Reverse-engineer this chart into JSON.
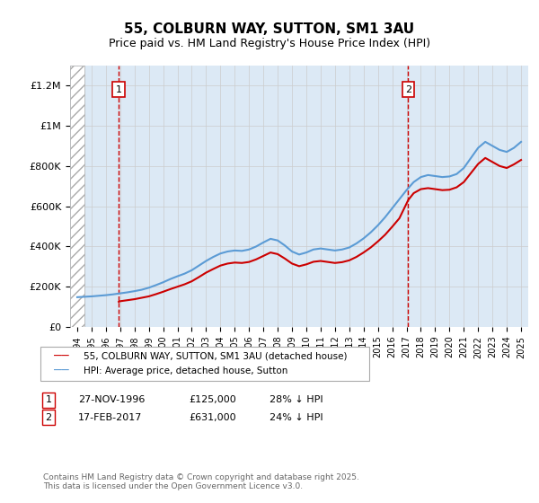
{
  "title": "55, COLBURN WAY, SUTTON, SM1 3AU",
  "subtitle": "Price paid vs. HM Land Registry's House Price Index (HPI)",
  "ylabel_ticks": [
    0,
    200000,
    400000,
    600000,
    800000,
    1000000,
    1200000
  ],
  "ylabel_labels": [
    "£0",
    "£200K",
    "£400K",
    "£600K",
    "£800K",
    "£1M",
    "£1.2M"
  ],
  "ylim": [
    0,
    1300000
  ],
  "xmin": 1993.5,
  "xmax": 2025.5,
  "transaction1_x": 1996.9,
  "transaction1_y": 125000,
  "transaction1_label": "1",
  "transaction2_x": 2017.12,
  "transaction2_y": 631000,
  "transaction2_label": "2",
  "red_line_color": "#cc0000",
  "blue_line_color": "#5b9bd5",
  "grid_color": "#cccccc",
  "bg_color": "#dce9f5",
  "hatch_color": "#bbbbcc",
  "legend_label1": "55, COLBURN WAY, SUTTON, SM1 3AU (detached house)",
  "legend_label2": "HPI: Average price, detached house, Sutton",
  "table_row1": [
    "1",
    "27-NOV-1996",
    "£125,000",
    "28% ↓ HPI"
  ],
  "table_row2": [
    "2",
    "17-FEB-2017",
    "£631,000",
    "24% ↓ HPI"
  ],
  "footer": "Contains HM Land Registry data © Crown copyright and database right 2025.\nThis data is licensed under the Open Government Licence v3.0.",
  "hpi_data_x": [
    1994,
    1994.5,
    1995,
    1995.5,
    1996,
    1996.5,
    1997,
    1997.5,
    1998,
    1998.5,
    1999,
    1999.5,
    2000,
    2000.5,
    2001,
    2001.5,
    2002,
    2002.5,
    2003,
    2003.5,
    2004,
    2004.5,
    2005,
    2005.5,
    2006,
    2006.5,
    2007,
    2007.5,
    2008,
    2008.5,
    2009,
    2009.5,
    2010,
    2010.5,
    2011,
    2011.5,
    2012,
    2012.5,
    2013,
    2013.5,
    2014,
    2014.5,
    2015,
    2015.5,
    2016,
    2016.5,
    2017,
    2017.5,
    2018,
    2018.5,
    2019,
    2019.5,
    2020,
    2020.5,
    2021,
    2021.5,
    2022,
    2022.5,
    2023,
    2023.5,
    2024,
    2024.5,
    2025
  ],
  "hpi_data_y": [
    148000,
    150000,
    152000,
    155000,
    158000,
    162000,
    167000,
    172000,
    178000,
    185000,
    195000,
    208000,
    222000,
    238000,
    252000,
    265000,
    282000,
    305000,
    328000,
    348000,
    365000,
    375000,
    380000,
    378000,
    385000,
    400000,
    420000,
    438000,
    430000,
    405000,
    375000,
    360000,
    370000,
    385000,
    390000,
    385000,
    380000,
    385000,
    395000,
    415000,
    440000,
    470000,
    505000,
    545000,
    590000,
    635000,
    680000,
    720000,
    745000,
    755000,
    750000,
    745000,
    748000,
    760000,
    790000,
    840000,
    890000,
    920000,
    900000,
    880000,
    870000,
    890000,
    920000
  ],
  "price_data_x": [
    1996.9,
    1997,
    1997.5,
    1998,
    1998.5,
    1999,
    1999.5,
    2000,
    2000.5,
    2001,
    2001.5,
    2002,
    2002.5,
    2003,
    2003.5,
    2004,
    2004.5,
    2005,
    2005.5,
    2006,
    2006.5,
    2007,
    2007.5,
    2008,
    2008.5,
    2009,
    2009.5,
    2010,
    2010.5,
    2011,
    2011.5,
    2012,
    2012.5,
    2013,
    2013.5,
    2014,
    2014.5,
    2015,
    2015.5,
    2016,
    2016.5,
    2017.12,
    2017.5,
    2018,
    2018.5,
    2019,
    2019.5,
    2020,
    2020.5,
    2021,
    2021.5,
    2022,
    2022.5,
    2023,
    2023.5,
    2024,
    2024.5,
    2025
  ],
  "price_data_y": [
    125000,
    128000,
    133000,
    138000,
    145000,
    152000,
    163000,
    175000,
    188000,
    200000,
    212000,
    227000,
    248000,
    270000,
    288000,
    305000,
    315000,
    320000,
    318000,
    323000,
    336000,
    353000,
    370000,
    362000,
    340000,
    315000,
    302000,
    311000,
    324000,
    328000,
    323000,
    318000,
    322000,
    331000,
    348000,
    370000,
    395000,
    425000,
    458000,
    498000,
    540000,
    631000,
    665000,
    685000,
    690000,
    685000,
    680000,
    682000,
    694000,
    720000,
    765000,
    810000,
    840000,
    820000,
    800000,
    790000,
    808000,
    830000
  ]
}
